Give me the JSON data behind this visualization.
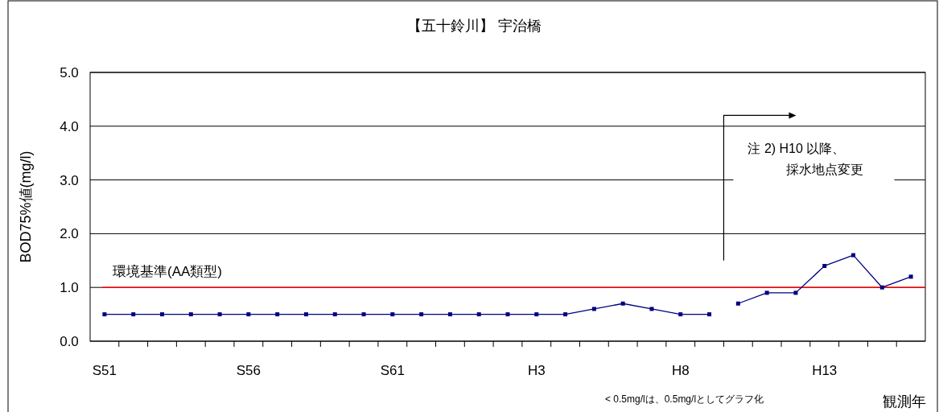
{
  "chart_data": {
    "type": "line",
    "title": "【五十鈴川】 宇治橋",
    "xlabel": "観測年",
    "ylabel": "BOD75%値(mg/l)",
    "categories": [
      "S51",
      null,
      null,
      null,
      null,
      "S56",
      null,
      null,
      null,
      null,
      "S61",
      null,
      null,
      null,
      null,
      "H3",
      null,
      null,
      null,
      null,
      "H8",
      null,
      null,
      null,
      null,
      "H13",
      null,
      null,
      null
    ],
    "series": [
      {
        "color": "#000080",
        "values": [
          0.5,
          0.5,
          0.5,
          0.5,
          0.5,
          0.5,
          0.5,
          0.5,
          0.5,
          0.5,
          0.5,
          0.5,
          0.5,
          0.5,
          0.5,
          0.5,
          0.5,
          0.6,
          0.7,
          0.6,
          0.5,
          0.5,
          null,
          null,
          null,
          null,
          null,
          null,
          null
        ]
      },
      {
        "color": "#000080",
        "values": [
          null,
          null,
          null,
          null,
          null,
          null,
          null,
          null,
          null,
          null,
          null,
          null,
          null,
          null,
          null,
          null,
          null,
          null,
          null,
          null,
          null,
          null,
          0.7,
          0.9,
          0.9,
          1.4,
          1.6,
          1.0,
          1.2
        ]
      }
    ],
    "ylim": [
      0,
      5
    ],
    "yticks": [
      {
        "value": 0,
        "label": "0.0"
      },
      {
        "value": 1,
        "label": "1.0"
      },
      {
        "value": 2,
        "label": "2.0"
      },
      {
        "value": 3,
        "label": "3.0"
      },
      {
        "value": 4,
        "label": "4.0"
      },
      {
        "value": 5,
        "label": "5.0"
      }
    ],
    "grid": "y",
    "marker": "square",
    "line_style": "solid",
    "ref_lines": [
      {
        "axis": "y",
        "value": 1.0,
        "label": "環境基準(AA類型)",
        "color": "#ff0000"
      }
    ],
    "annotations": [
      "注 2) H10 以降、",
      "採水地点変更",
      "< 0.5mg/lは、0.5mg/lとしてグラフ化"
    ]
  }
}
